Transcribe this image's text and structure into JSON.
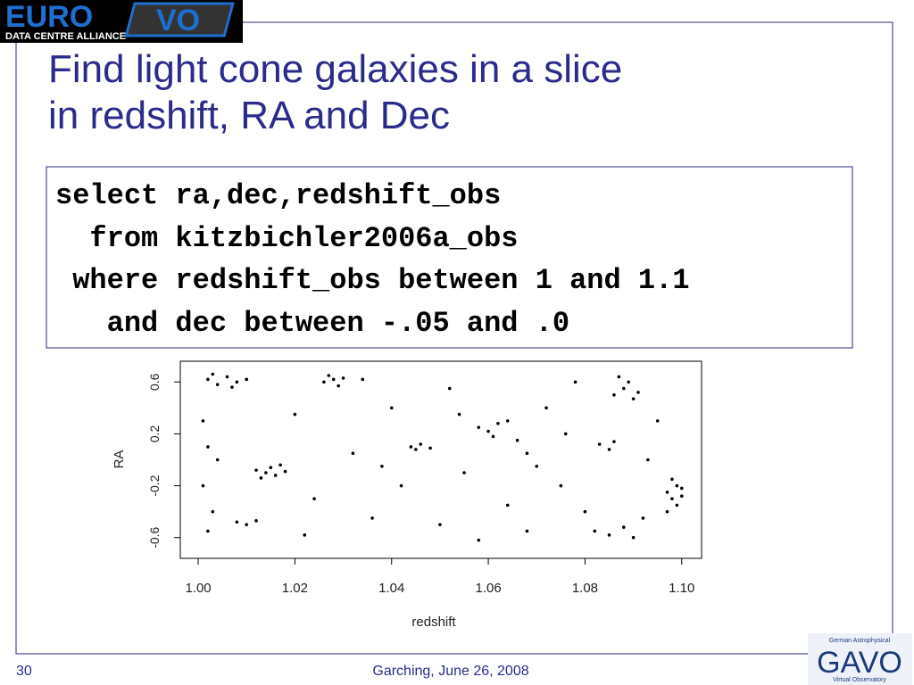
{
  "header": {
    "logo_euro": "EURO",
    "logo_vo": "VO",
    "logo_sub": "DATA CENTRE ALLIANCE"
  },
  "title": "Find light cone galaxies in a slice in redshift, RA and Dec",
  "code": [
    "select ra,dec,redshift_obs",
    "  from kitzbichler2006a_obs",
    " where redshift_obs between 1 and 1.1",
    "   and dec between -.05 and .0"
  ],
  "chart_data": {
    "type": "scatter",
    "x_label": "redshift",
    "y_label": "RA",
    "color": "#000000",
    "x": [
      1.002,
      1.004,
      1.006,
      1.008,
      1.01,
      1.003,
      1.007,
      1.026,
      1.028,
      1.029,
      1.03,
      1.027,
      1.012,
      1.014,
      1.015,
      1.016,
      1.018,
      1.013,
      1.017,
      1.086,
      1.088,
      1.089,
      1.09,
      1.087,
      1.091,
      1.097,
      1.098,
      1.099,
      1.1,
      1.098,
      1.099,
      1.097,
      1.1,
      1.082,
      1.085,
      1.088,
      1.09,
      1.058,
      1.06,
      1.062,
      1.061,
      1.064,
      1.066,
      1.068,
      1.07,
      1.044,
      1.046,
      1.048,
      1.045,
      1.001,
      1.002,
      1.001,
      1.003,
      1.002,
      1.004,
      1.008,
      1.01,
      1.012,
      1.083,
      1.085,
      1.086,
      1.02,
      1.024,
      1.032,
      1.036,
      1.04,
      1.042,
      1.05,
      1.052,
      1.055,
      1.058,
      1.064,
      1.072,
      1.075,
      1.078,
      1.08,
      1.093,
      1.095,
      1.022,
      1.034,
      1.038,
      1.054,
      1.068,
      1.076,
      1.092
    ],
    "y": [
      0.62,
      0.58,
      0.64,
      0.6,
      0.62,
      0.66,
      0.56,
      0.6,
      0.62,
      0.57,
      0.63,
      0.65,
      -0.08,
      -0.1,
      -0.06,
      -0.12,
      -0.09,
      -0.14,
      -0.04,
      0.5,
      0.55,
      0.6,
      0.47,
      0.64,
      0.52,
      -0.25,
      -0.3,
      -0.2,
      -0.28,
      -0.15,
      -0.35,
      -0.4,
      -0.22,
      -0.55,
      -0.58,
      -0.52,
      -0.6,
      0.25,
      0.22,
      0.28,
      0.18,
      0.3,
      0.15,
      0.05,
      -0.05,
      0.1,
      0.12,
      0.09,
      0.08,
      0.3,
      0.1,
      -0.2,
      -0.4,
      -0.55,
      0.0,
      -0.48,
      -0.5,
      -0.47,
      0.12,
      0.08,
      0.14,
      0.35,
      -0.3,
      0.05,
      -0.45,
      0.4,
      -0.2,
      -0.5,
      0.55,
      -0.1,
      -0.62,
      -0.35,
      0.4,
      -0.2,
      0.6,
      -0.4,
      0.0,
      0.3,
      -0.58,
      0.62,
      -0.05,
      0.35,
      -0.55,
      0.2,
      -0.45
    ],
    "xlim": [
      0.9963,
      1.1041
    ],
    "ylim": [
      -0.76,
      0.76
    ],
    "xticks": [
      {
        "value": 1.0,
        "label": "1.00"
      },
      {
        "value": 1.02,
        "label": "1.02"
      },
      {
        "value": 1.04,
        "label": "1.04"
      },
      {
        "value": 1.06,
        "label": "1.06"
      },
      {
        "value": 1.08,
        "label": "1.08"
      },
      {
        "value": 1.1,
        "label": "1.10"
      }
    ],
    "yticks": [
      -0.6,
      -0.2,
      0.2,
      0.6
    ]
  },
  "footer": {
    "page": "30",
    "venue": "Garching, June 26, 2008",
    "gavo_top": "German Astrophysical",
    "gavo": "GAVO",
    "gavo_bottom": "Virtual Observatory"
  }
}
